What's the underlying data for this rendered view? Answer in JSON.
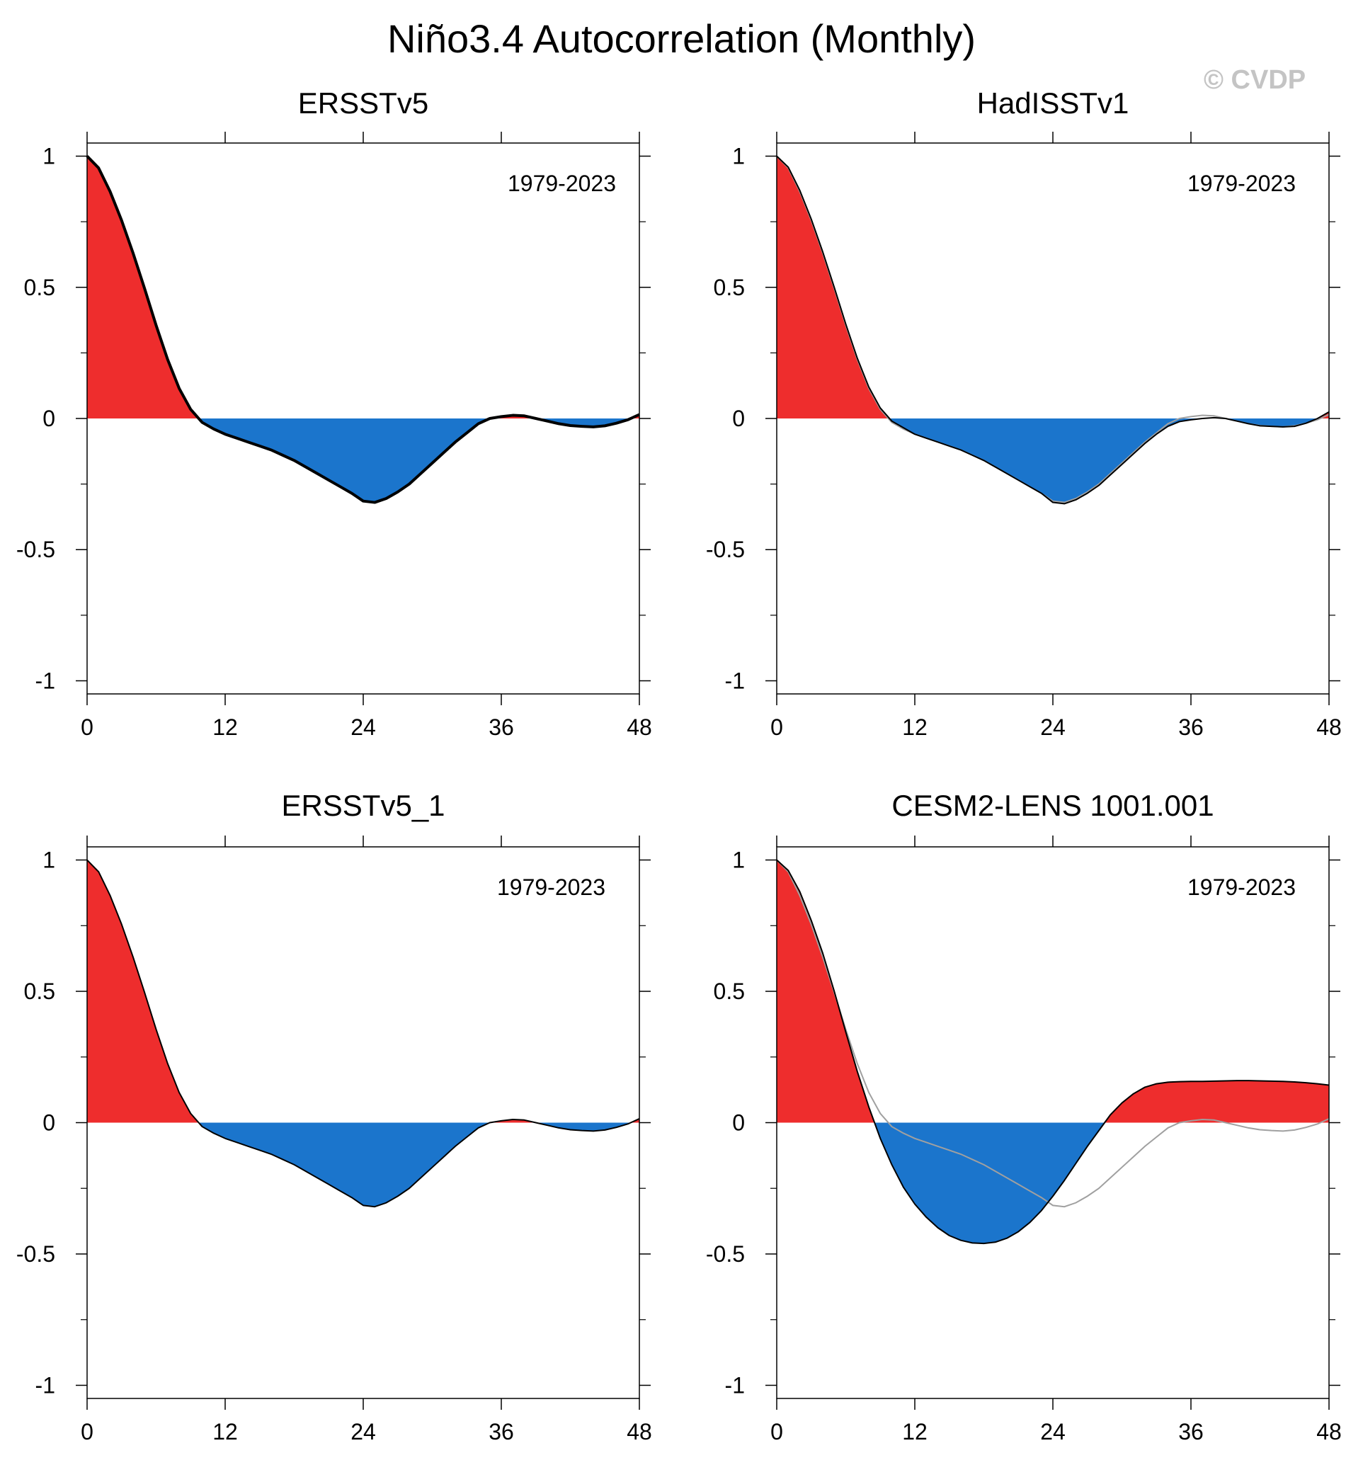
{
  "page": {
    "title": "Niño3.4 Autocorrelation (Monthly)",
    "watermark": "© CVDP"
  },
  "colors": {
    "positive_fill": "#ee2d2d",
    "negative_fill": "#1b75cc",
    "line": "#000000",
    "reference_line": "#a0a0a0",
    "axis": "#000000"
  },
  "chart_data": [
    {
      "type": "area",
      "title": "ERSSTv5",
      "period": "1979-2023",
      "xlim": [
        0,
        48
      ],
      "ylim": [
        -1.05,
        1.05
      ],
      "xticks": [
        0,
        12,
        24,
        36,
        48
      ],
      "xtick_labels": [
        "0",
        "12",
        "24",
        "36",
        "48"
      ],
      "yticks": [
        -1,
        -0.5,
        0,
        0.5,
        1
      ],
      "ytick_labels": [
        "-1",
        "-0.5",
        "0",
        "0.5",
        "1"
      ],
      "series": [
        {
          "name": "ERSSTv5",
          "x": [
            0,
            1,
            2,
            3,
            4,
            5,
            6,
            7,
            8,
            9,
            10,
            11,
            12,
            13,
            14,
            15,
            16,
            17,
            18,
            19,
            20,
            21,
            22,
            23,
            24,
            25,
            26,
            27,
            28,
            29,
            30,
            31,
            32,
            33,
            34,
            35,
            36,
            37,
            38,
            39,
            40,
            41,
            42,
            43,
            44,
            45,
            46,
            47,
            48
          ],
          "values": [
            1.0,
            0.955,
            0.865,
            0.755,
            0.63,
            0.495,
            0.355,
            0.225,
            0.115,
            0.035,
            -0.015,
            -0.04,
            -0.06,
            -0.075,
            -0.09,
            -0.105,
            -0.12,
            -0.14,
            -0.16,
            -0.185,
            -0.21,
            -0.235,
            -0.26,
            -0.285,
            -0.315,
            -0.32,
            -0.305,
            -0.28,
            -0.25,
            -0.21,
            -0.17,
            -0.13,
            -0.09,
            -0.055,
            -0.02,
            0.0,
            0.007,
            0.012,
            0.01,
            0.0,
            -0.01,
            -0.02,
            -0.027,
            -0.03,
            -0.032,
            -0.028,
            -0.018,
            -0.005,
            0.015
          ]
        }
      ],
      "reference": null
    },
    {
      "type": "area",
      "title": "HadISSTv1",
      "period": "1979-2023",
      "xlim": [
        0,
        48
      ],
      "ylim": [
        -1.05,
        1.05
      ],
      "xticks": [
        0,
        12,
        24,
        36,
        48
      ],
      "xtick_labels": [
        "0",
        "12",
        "24",
        "36",
        "48"
      ],
      "yticks": [
        -1,
        -0.5,
        0,
        0.5,
        1
      ],
      "ytick_labels": [
        "-1",
        "-0.5",
        "0",
        "0.5",
        "1"
      ],
      "series": [
        {
          "name": "HadISSTv1",
          "x": [
            0,
            1,
            2,
            3,
            4,
            5,
            6,
            7,
            8,
            9,
            10,
            11,
            12,
            13,
            14,
            15,
            16,
            17,
            18,
            19,
            20,
            21,
            22,
            23,
            24,
            25,
            26,
            27,
            28,
            29,
            30,
            31,
            32,
            33,
            34,
            35,
            36,
            37,
            38,
            39,
            40,
            41,
            42,
            43,
            44,
            45,
            46,
            47,
            48
          ],
          "values": [
            1.0,
            0.958,
            0.87,
            0.76,
            0.635,
            0.5,
            0.36,
            0.23,
            0.12,
            0.04,
            -0.01,
            -0.035,
            -0.06,
            -0.075,
            -0.09,
            -0.105,
            -0.12,
            -0.14,
            -0.16,
            -0.185,
            -0.21,
            -0.235,
            -0.26,
            -0.285,
            -0.32,
            -0.325,
            -0.31,
            -0.285,
            -0.255,
            -0.215,
            -0.175,
            -0.135,
            -0.095,
            -0.06,
            -0.03,
            -0.012,
            -0.005,
            0.0,
            0.003,
            0.0,
            -0.01,
            -0.02,
            -0.028,
            -0.03,
            -0.032,
            -0.03,
            -0.018,
            0.0,
            0.025
          ]
        }
      ],
      "reference": {
        "name": "ERSSTv5"
      }
    },
    {
      "type": "area",
      "title": "ERSSTv5_1",
      "period": "1979-2023",
      "xlim": [
        0,
        48
      ],
      "ylim": [
        -1.05,
        1.05
      ],
      "xticks": [
        0,
        12,
        24,
        36,
        48
      ],
      "xtick_labels": [
        "0",
        "12",
        "24",
        "36",
        "48"
      ],
      "yticks": [
        -1,
        -0.5,
        0,
        0.5,
        1
      ],
      "ytick_labels": [
        "-1",
        "-0.5",
        "0",
        "0.5",
        "1"
      ],
      "series": [
        {
          "name": "ERSSTv5_1",
          "x": [
            0,
            1,
            2,
            3,
            4,
            5,
            6,
            7,
            8,
            9,
            10,
            11,
            12,
            13,
            14,
            15,
            16,
            17,
            18,
            19,
            20,
            21,
            22,
            23,
            24,
            25,
            26,
            27,
            28,
            29,
            30,
            31,
            32,
            33,
            34,
            35,
            36,
            37,
            38,
            39,
            40,
            41,
            42,
            43,
            44,
            45,
            46,
            47,
            48
          ],
          "values": [
            1.0,
            0.955,
            0.865,
            0.755,
            0.63,
            0.495,
            0.355,
            0.225,
            0.115,
            0.035,
            -0.015,
            -0.04,
            -0.06,
            -0.075,
            -0.09,
            -0.105,
            -0.12,
            -0.14,
            -0.16,
            -0.185,
            -0.21,
            -0.235,
            -0.26,
            -0.285,
            -0.315,
            -0.32,
            -0.305,
            -0.28,
            -0.25,
            -0.21,
            -0.17,
            -0.13,
            -0.09,
            -0.055,
            -0.02,
            0.0,
            0.007,
            0.012,
            0.01,
            0.0,
            -0.01,
            -0.02,
            -0.027,
            -0.03,
            -0.032,
            -0.028,
            -0.018,
            -0.005,
            0.015
          ]
        }
      ],
      "reference": null
    },
    {
      "type": "area",
      "title": "CESM2-LENS 1001.001",
      "period": "1979-2023",
      "xlim": [
        0,
        48
      ],
      "ylim": [
        -1.05,
        1.05
      ],
      "xticks": [
        0,
        12,
        24,
        36,
        48
      ],
      "xtick_labels": [
        "0",
        "12",
        "24",
        "36",
        "48"
      ],
      "yticks": [
        -1,
        -0.5,
        0,
        0.5,
        1
      ],
      "ytick_labels": [
        "-1",
        "-0.5",
        "0",
        "0.5",
        "1"
      ],
      "series": [
        {
          "name": "CESM2-LENS 1001.001",
          "x": [
            0,
            1,
            2,
            3,
            4,
            5,
            6,
            7,
            8,
            9,
            10,
            11,
            12,
            13,
            14,
            15,
            16,
            17,
            18,
            19,
            20,
            21,
            22,
            23,
            24,
            25,
            26,
            27,
            28,
            29,
            30,
            31,
            32,
            33,
            34,
            35,
            36,
            37,
            38,
            39,
            40,
            41,
            42,
            43,
            44,
            45,
            46,
            47,
            48
          ],
          "values": [
            1.0,
            0.96,
            0.88,
            0.77,
            0.645,
            0.5,
            0.345,
            0.195,
            0.06,
            -0.06,
            -0.16,
            -0.245,
            -0.31,
            -0.36,
            -0.4,
            -0.43,
            -0.448,
            -0.458,
            -0.46,
            -0.455,
            -0.44,
            -0.415,
            -0.38,
            -0.335,
            -0.28,
            -0.22,
            -0.155,
            -0.09,
            -0.03,
            0.03,
            0.075,
            0.11,
            0.135,
            0.148,
            0.154,
            0.156,
            0.157,
            0.157,
            0.158,
            0.159,
            0.16,
            0.16,
            0.159,
            0.158,
            0.157,
            0.155,
            0.152,
            0.148,
            0.143
          ]
        }
      ],
      "reference": {
        "name": "ERSSTv5"
      }
    }
  ]
}
